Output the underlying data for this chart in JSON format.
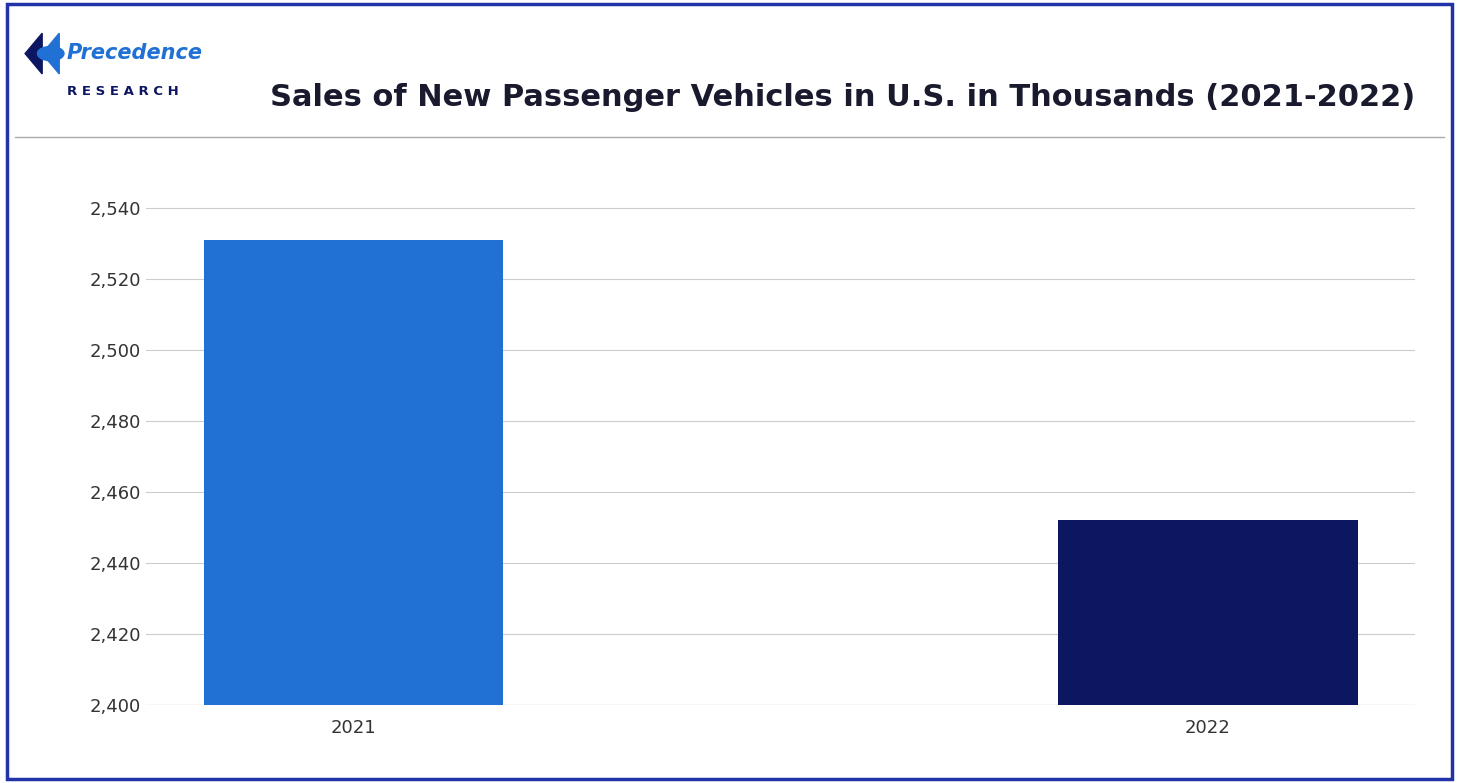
{
  "title": "Sales of New Passenger Vehicles in U.S. in Thousands (2021-2022)",
  "categories": [
    "2021",
    "2022"
  ],
  "values": [
    2531,
    2452
  ],
  "bar_colors": [
    "#2171d5",
    "#0d1660"
  ],
  "ylim": [
    2400,
    2550
  ],
  "yticks": [
    2400,
    2420,
    2440,
    2460,
    2480,
    2500,
    2520,
    2540
  ],
  "background_color": "#ffffff",
  "title_fontsize": 22,
  "tick_fontsize": 13,
  "title_color": "#1a1a2e",
  "tick_color": "#333333",
  "grid_color": "#cccccc",
  "bar_width": 0.35,
  "logo_color_main": "#1a3a8f",
  "logo_color_accent": "#2171d5",
  "border_color": "#2233aa"
}
